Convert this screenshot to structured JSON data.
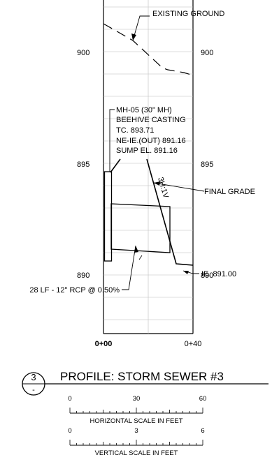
{
  "profile": {
    "elevation_labels": [
      "900",
      "895",
      "890"
    ],
    "station_labels": [
      "0+00",
      "0+40"
    ],
    "existing_ground_label": "EXISTING GROUND",
    "final_grade_label": "FINAL GRADE",
    "slope_label": "3H:1V",
    "manhole_lines": [
      "MH-05 (30\" MH)",
      "BEEHIVE CASTING",
      "TC. 893.71",
      "NE-IE.(OUT) 891.16",
      "SUMP EL. 891.16"
    ],
    "outlet_invert_label": "IE. 891.00",
    "pipe_label": "28 LF - 12\" RCP @ 0.50%"
  },
  "title_block": {
    "number": "3",
    "sheet": "-",
    "title": "PROFILE:  STORM SEWER #3"
  },
  "horizontal_scale": {
    "ticks": [
      "0",
      "30",
      "60"
    ],
    "label": "HORIZONTAL SCALE IN FEET"
  },
  "vertical_scale": {
    "ticks": [
      "0",
      "3",
      "6"
    ],
    "label": "VERTICAL SCALE IN FEET"
  }
}
